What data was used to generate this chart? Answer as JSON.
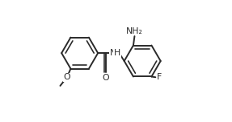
{
  "bg_color": "#ffffff",
  "line_color": "#2a2a2a",
  "text_color": "#2a2a2a",
  "line_width": 1.4,
  "font_size": 7.8,
  "r1cx": 0.205,
  "r1cy": 0.565,
  "r1r": 0.148,
  "r2cx": 0.715,
  "r2cy": 0.5,
  "r2r": 0.148,
  "nh2_label": "NH₂",
  "f_label": "F",
  "o_carbonyl_label": "O",
  "o_methoxy_label": "O",
  "n_amide_label": "H",
  "n_text": "N"
}
